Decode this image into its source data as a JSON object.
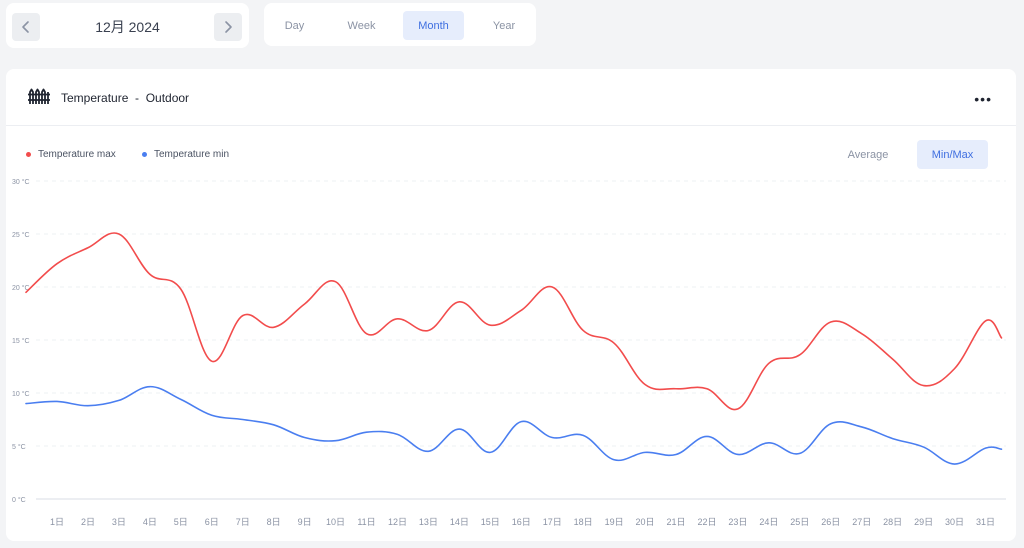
{
  "nav": {
    "date_label": "12月 2024",
    "prev_icon": "chevron-left-icon",
    "next_icon": "chevron-right-icon"
  },
  "period_tabs": [
    {
      "label": "Day",
      "active": false
    },
    {
      "label": "Week",
      "active": false
    },
    {
      "label": "Month",
      "active": true
    },
    {
      "label": "Year",
      "active": false
    }
  ],
  "card": {
    "title": "Temperature  -  Outdoor",
    "icon": "fence-icon",
    "menu_icon": "more-icon",
    "modes": [
      {
        "label": "Average",
        "active": false
      },
      {
        "label": "Min/Max",
        "active": true
      }
    ]
  },
  "colors": {
    "max": "#f24c4c",
    "min": "#4a7ef0",
    "accent": "#3f6fe0"
  },
  "chart_data": {
    "type": "line",
    "x": [
      "1日",
      "2日",
      "3日",
      "4日",
      "5日",
      "6日",
      "7日",
      "8日",
      "9日",
      "10日",
      "11日",
      "12日",
      "13日",
      "14日",
      "15日",
      "16日",
      "17日",
      "18日",
      "19日",
      "20日",
      "21日",
      "22日",
      "23日",
      "24日",
      "25日",
      "26日",
      "27日",
      "28日",
      "29日",
      "30日",
      "31日"
    ],
    "ylim": [
      0,
      30
    ],
    "yticks": [
      "0 °C",
      "5 °C",
      "10 °C",
      "15 °C",
      "20 °C",
      "25 °C",
      "30 °C"
    ],
    "grid": true,
    "legend": "top-left",
    "series": [
      {
        "name": "Temperature max",
        "color": "#f24c4c",
        "values": [
          22.2,
          23.7,
          25.0,
          21.2,
          19.8,
          13.0,
          17.3,
          16.2,
          18.4,
          20.5,
          15.6,
          17.0,
          15.9,
          18.6,
          16.4,
          17.8,
          20.0,
          15.9,
          14.7,
          10.8,
          10.4,
          10.4,
          8.5,
          12.8,
          13.6,
          16.7,
          15.6,
          13.2,
          10.7,
          12.3,
          16.8
        ]
      },
      {
        "name": "Temperature min",
        "color": "#4a7ef0",
        "values": [
          9.2,
          8.8,
          9.3,
          10.6,
          9.4,
          7.9,
          7.5,
          7.0,
          5.8,
          5.5,
          6.3,
          6.1,
          4.5,
          6.6,
          4.4,
          7.3,
          5.8,
          6.0,
          3.7,
          4.4,
          4.2,
          5.9,
          4.2,
          5.3,
          4.3,
          7.1,
          6.8,
          5.7,
          4.9,
          3.3,
          4.8
        ]
      }
    ]
  }
}
